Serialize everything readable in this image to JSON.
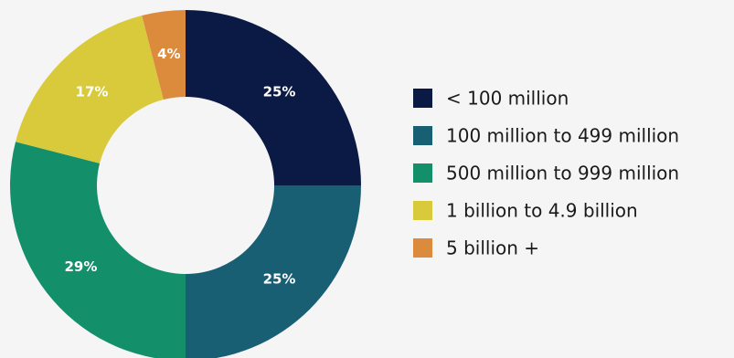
{
  "chart_data": {
    "type": "pie",
    "variant": "donut",
    "categories": [
      "< 100 million",
      "100 million to 499 million",
      "500 million to 999 million",
      "1 billion to 4.9 billion",
      "5 billion +"
    ],
    "values": [
      25,
      25,
      29,
      17,
      4
    ],
    "data_labels": [
      "25%",
      "25%",
      "29%",
      "17%",
      "4%"
    ],
    "colors": [
      "#0b1a44",
      "#195f74",
      "#13906a",
      "#d9ca3c",
      "#dc8a3c"
    ],
    "legend_position": "right",
    "title": "",
    "background": "#f5f5f5"
  }
}
